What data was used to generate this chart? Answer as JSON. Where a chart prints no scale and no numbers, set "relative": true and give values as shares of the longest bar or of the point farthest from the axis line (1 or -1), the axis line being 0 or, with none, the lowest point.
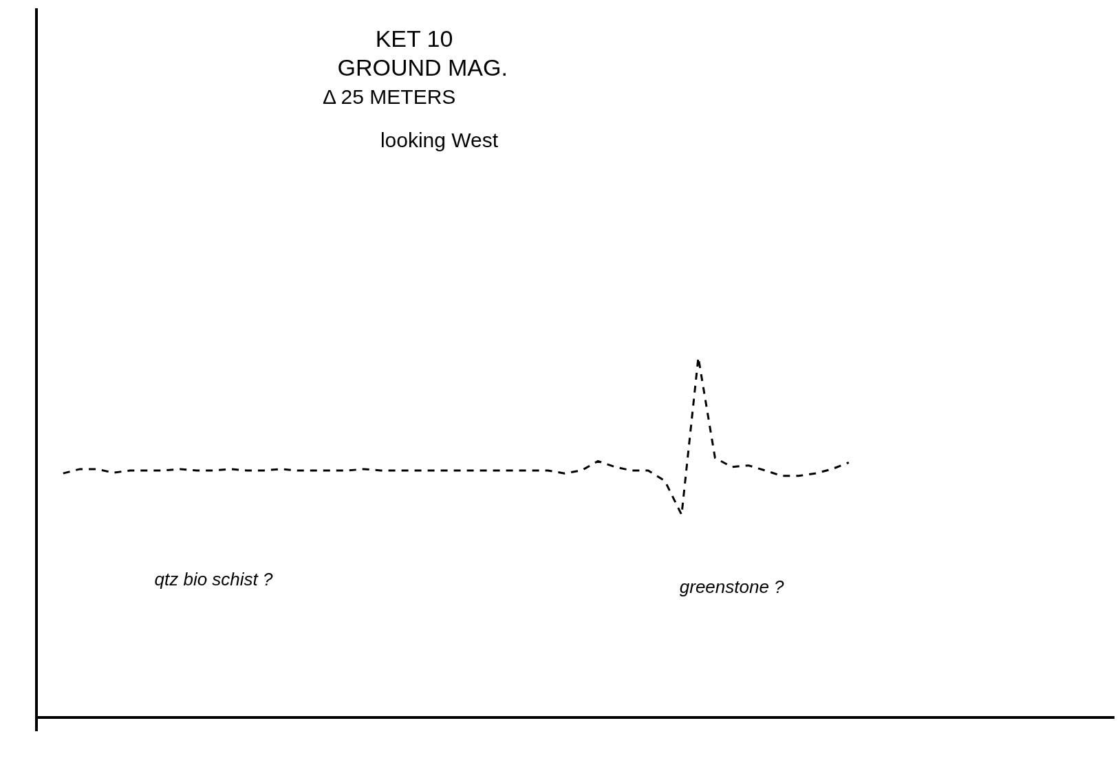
{
  "chart_data": {
    "type": "line",
    "title": "KET 10",
    "subtitle": "GROUND MAG.",
    "relative": true,
    "categories": [
      null,
      null,
      null,
      null,
      null,
      null,
      null,
      null,
      null,
      null,
      null,
      null,
      null,
      null,
      null,
      null,
      null,
      null,
      null,
      null,
      null,
      null,
      null,
      null,
      null,
      null,
      null,
      null,
      null,
      null,
      null,
      null,
      null,
      null,
      null,
      null,
      null,
      null,
      null,
      null,
      null,
      null,
      null,
      null,
      null,
      null,
      null,
      null,
      null,
      null,
      null,
      null,
      null,
      null,
      null,
      null,
      null,
      null,
      null,
      null,
      null,
      null,
      null
    ],
    "series": [
      {
        "color": "#000000",
        "values": [
          0.678,
          0.69,
          0.69,
          0.68,
          0.686,
          0.686,
          0.686,
          0.69,
          0.686,
          0.686,
          0.69,
          0.686,
          0.686,
          0.69,
          0.686,
          0.686,
          0.686,
          0.686,
          0.69,
          0.686,
          0.686,
          0.686,
          0.686,
          0.686,
          0.686,
          0.686,
          0.686,
          0.686,
          0.686,
          0.686,
          0.678,
          0.686,
          0.712,
          0.696,
          0.686,
          0.686,
          0.657,
          0.563,
          1,
          0.721,
          0.696,
          0.7,
          0.686,
          0.671,
          0.671,
          0.678,
          0.69,
          0.708,
          null,
          null,
          null,
          null,
          null,
          null,
          null,
          null,
          null,
          null,
          null,
          null,
          null,
          null,
          null
        ]
      }
    ],
    "annotations": [
      "Δ 25 METERS",
      "looking West",
      "qtz bio schist ?",
      "greenstone ?"
    ],
    "marker": "none",
    "line_style": "dashed",
    "legend": false
  }
}
